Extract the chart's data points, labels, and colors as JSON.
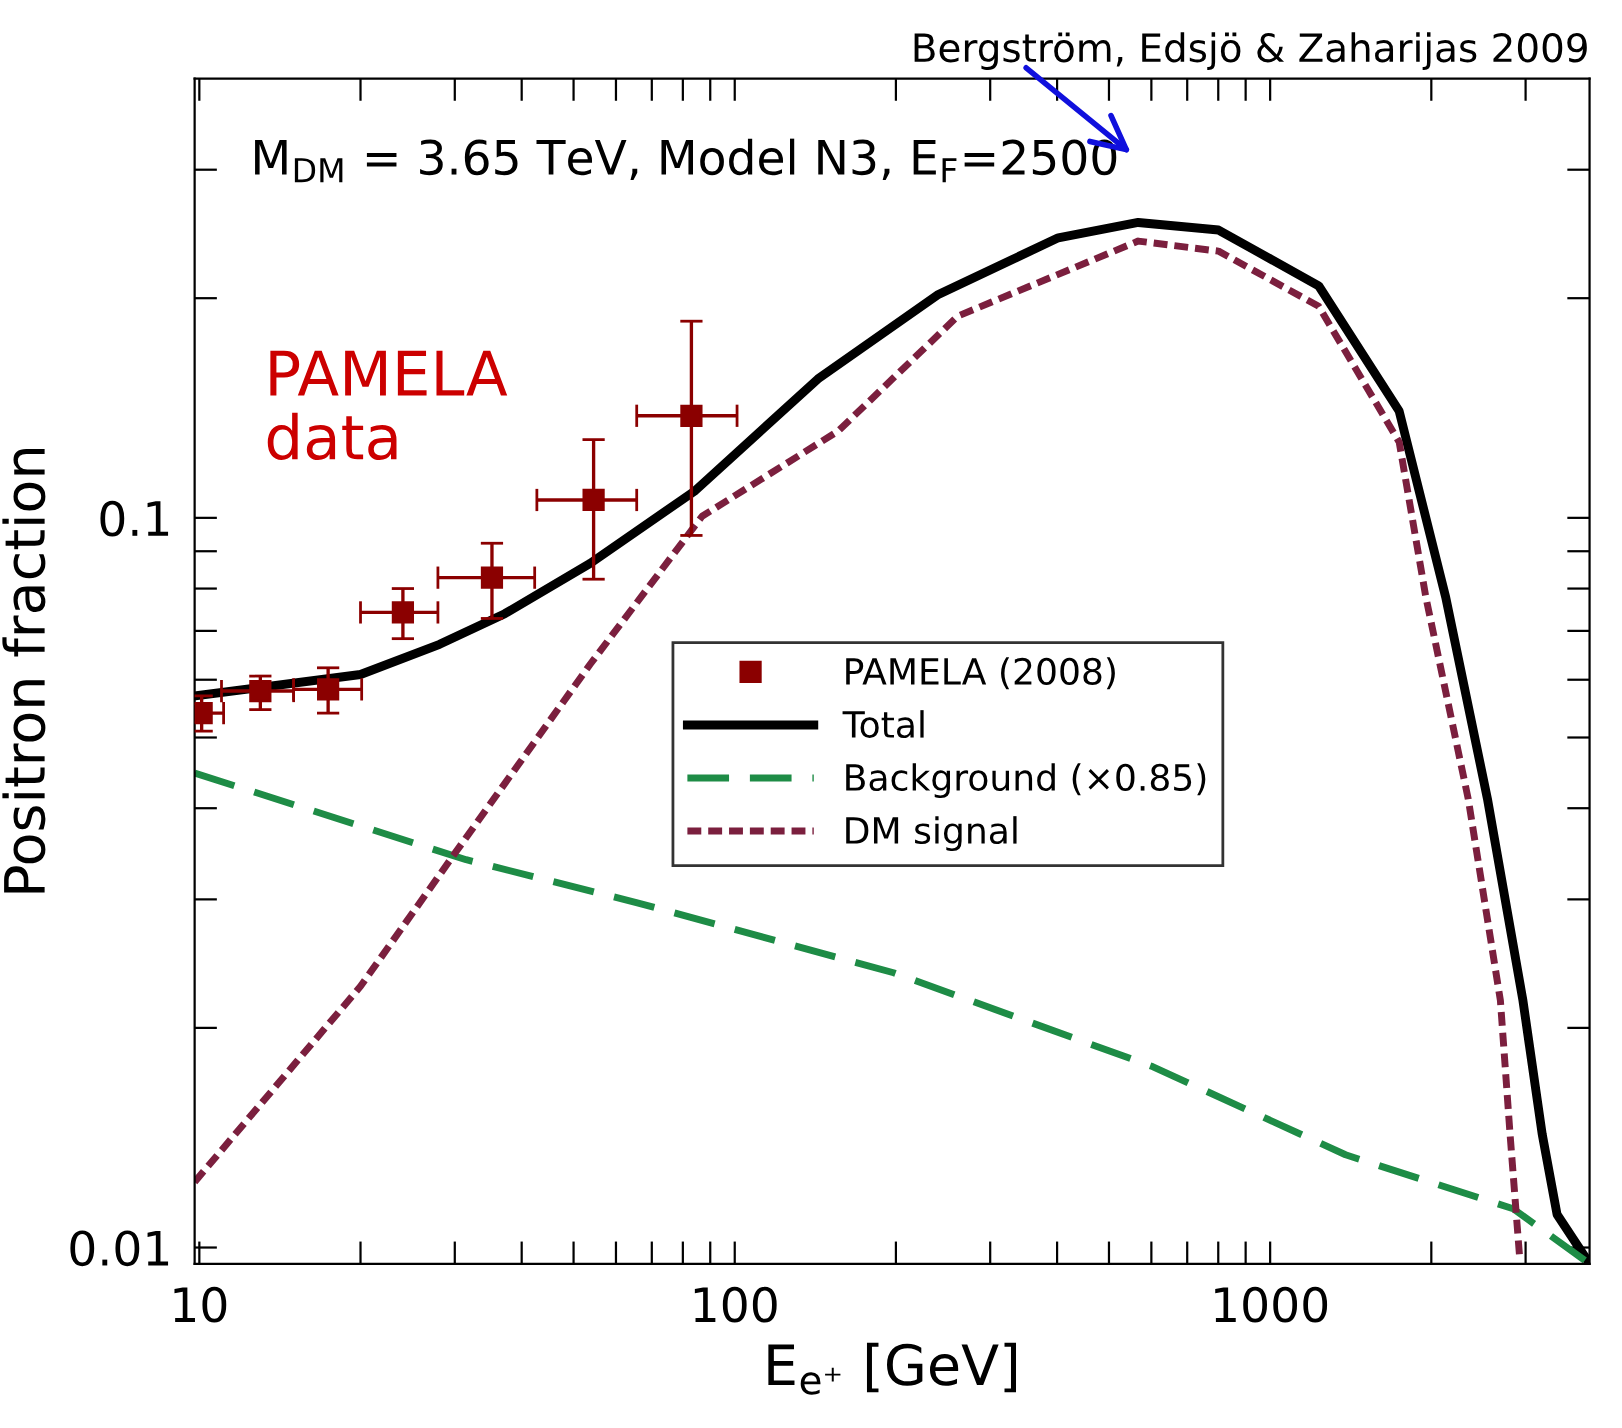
{
  "chart_data": {
    "type": "line",
    "title": "Bergström, Edsjö & Zaharijas 2009",
    "xlabel": "E$_{e⁺}$ [GeV]",
    "ylabel": "Positron fraction",
    "log": "xy",
    "xlim": [
      9.8,
      3950
    ],
    "ylim": [
      0.0095,
      0.4
    ],
    "xticks": [
      10,
      {
        "value": 20,
        "label": null
      },
      {
        "value": 30,
        "label": null
      },
      {
        "value": 40,
        "label": null
      },
      {
        "value": 50,
        "label": null
      },
      {
        "value": 60,
        "label": null
      },
      {
        "value": 70,
        "label": null
      },
      {
        "value": 80,
        "label": null
      },
      {
        "value": 90,
        "label": null
      },
      100,
      {
        "value": 200,
        "label": null
      },
      {
        "value": 300,
        "label": null
      },
      {
        "value": 400,
        "label": null
      },
      {
        "value": 500,
        "label": null
      },
      {
        "value": 600,
        "label": null
      },
      {
        "value": 700,
        "label": null
      },
      {
        "value": 800,
        "label": null
      },
      {
        "value": 900,
        "label": null
      },
      1000,
      {
        "value": 2000,
        "label": null
      },
      {
        "value": 3000,
        "label": null
      }
    ],
    "yticks": [
      0.01,
      {
        "value": 0.02,
        "label": null
      },
      {
        "value": 0.03,
        "label": null
      },
      {
        "value": 0.04,
        "label": null
      },
      {
        "value": 0.05,
        "label": null
      },
      {
        "value": 0.06,
        "label": null
      },
      {
        "value": 0.07,
        "label": null
      },
      {
        "value": 0.08,
        "label": null
      },
      {
        "value": 0.09,
        "label": null
      },
      0.1,
      {
        "value": 0.2,
        "label": null
      },
      {
        "value": 0.3,
        "label": null
      }
    ],
    "grid": false,
    "legend": "center",
    "annotations": [
      "M$_{DM}$ = 3.65 TeV, Model N3, E$_{F}$=2500",
      "PAMELA\ndata"
    ],
    "series": [
      {
        "name": "PAMELA (2008)",
        "type": "scatter",
        "marker": "square",
        "color": "#8b0000",
        "x": [
          10.1,
          13.0,
          17.4,
          24.0,
          35.2,
          54.5,
          83
        ],
        "values": [
          0.054,
          0.0579,
          0.0582,
          0.0742,
          0.0828,
          0.1058,
          0.138
        ],
        "errors": [
          [
            0.051,
            0.057
          ],
          [
            0.0546,
            0.0607
          ],
          [
            0.054,
            0.0623
          ],
          [
            0.0683,
            0.08
          ],
          [
            0.0728,
            0.0923
          ],
          [
            0.0824,
            0.128
          ],
          [
            0.0946,
            0.186
          ]
        ],
        "xerrors": [
          [
            10.1,
            11.1
          ],
          [
            11.0,
            15.0
          ],
          [
            15.0,
            20.1
          ],
          [
            20.0,
            27.9
          ],
          [
            27.9,
            42.3
          ],
          [
            42.7,
            65.6
          ],
          [
            65.6,
            101
          ]
        ]
      },
      {
        "name": "Total",
        "line_style": "solid",
        "color": "#000000",
        "x": [
          9.8,
          20,
          28.1,
          37.2,
          53.7,
          84.4,
          143,
          239,
          402,
          567,
          801,
          1232,
          1742,
          2128,
          2546,
          2966,
          3222,
          3435,
          3950
        ],
        "values": [
          0.057,
          0.061,
          0.0671,
          0.0739,
          0.0866,
          0.109,
          0.155,
          0.202,
          0.242,
          0.254,
          0.248,
          0.208,
          0.14,
          0.0778,
          0.0412,
          0.0218,
          0.0143,
          0.0111,
          0.0095
        ]
      },
      {
        "name": "Background (×0.85)",
        "line_style": "dashed",
        "color": "#1e8c46",
        "x": [
          9.8,
          31.5,
          65.5,
          198,
          603,
          1383,
          2844,
          3950
        ],
        "values": [
          0.0447,
          0.034,
          0.0297,
          0.0238,
          0.0177,
          0.0134,
          0.0113,
          0.0095
        ]
      },
      {
        "name": "DM signal",
        "line_style": "dotted",
        "color": "#7b1f3e",
        "x": [
          9.8,
          20,
          30.1,
          53.7,
          86.9,
          156,
          261,
          567,
          801,
          1232,
          1742,
          1954,
          2344,
          2692,
          2806,
          2924
        ],
        "values": [
          0.0123,
          0.0228,
          0.0348,
          0.063,
          0.1005,
          0.1315,
          0.189,
          0.2395,
          0.232,
          0.195,
          0.127,
          0.0778,
          0.0412,
          0.0218,
          0.0143,
          0.0097
        ]
      }
    ]
  }
}
